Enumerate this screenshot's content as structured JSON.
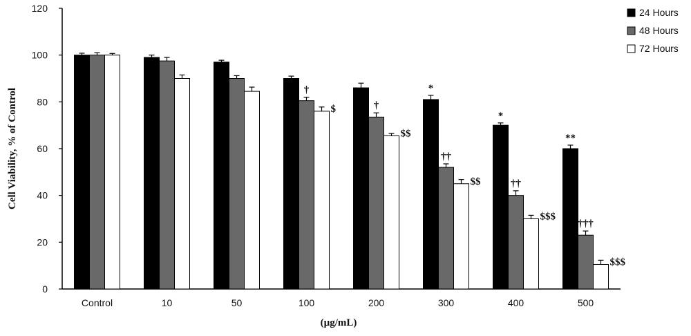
{
  "chart_data": {
    "type": "bar",
    "title": "",
    "xlabel": "(µg/mL)",
    "ylabel": "Cell Viability, % of Control",
    "ylim": [
      0,
      120
    ],
    "yticks": [
      0,
      20,
      40,
      60,
      80,
      100,
      120
    ],
    "grid": false,
    "legend_position": "top-right",
    "categories": [
      "Control",
      "10",
      "50",
      "100",
      "200",
      "300",
      "400",
      "500"
    ],
    "series": [
      {
        "name": "24 Hours",
        "color": "#000000",
        "values": [
          100,
          99,
          97,
          90,
          86,
          81,
          70,
          60
        ],
        "errors": [
          0.8,
          1.0,
          0.8,
          1.0,
          2.0,
          1.8,
          1.0,
          1.5
        ],
        "annotations": [
          "",
          "",
          "",
          "",
          "",
          "*",
          "*",
          "**"
        ]
      },
      {
        "name": "48 Hours",
        "color": "#696969",
        "values": [
          100,
          97.5,
          90,
          80.5,
          73.5,
          52,
          40,
          23
        ],
        "errors": [
          1.0,
          1.5,
          1.2,
          1.5,
          1.8,
          1.5,
          2.0,
          1.8
        ],
        "annotations": [
          "",
          "",
          "",
          "†",
          "†",
          "††",
          "††",
          "†††"
        ]
      },
      {
        "name": "72 Hours",
        "color": "#ffffff",
        "values": [
          100,
          90,
          84.5,
          76,
          65.5,
          45,
          30,
          10.5
        ],
        "errors": [
          0.7,
          1.5,
          1.8,
          1.8,
          1.0,
          1.8,
          1.5,
          1.8
        ],
        "annotations": [
          "",
          "",
          "",
          "$",
          "$$",
          "$$",
          "$$$",
          "$$$"
        ]
      }
    ]
  }
}
